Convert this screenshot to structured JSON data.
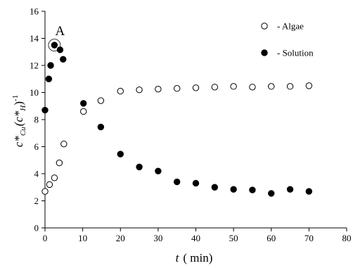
{
  "chart_data": {
    "type": "scatter",
    "xlabel": {
      "main": "t",
      "unit": "( min)"
    },
    "ylabel": {
      "c": "c*",
      "sub1": "Cu",
      "open": "(c*",
      "sub2": "H",
      "close": ")",
      "sup": "-1"
    },
    "xlim": [
      0,
      80
    ],
    "ylim": [
      0,
      16
    ],
    "xticks": [
      0,
      10,
      20,
      30,
      40,
      50,
      60,
      70,
      80
    ],
    "yticks": [
      0,
      2,
      4,
      6,
      8,
      10,
      12,
      14,
      16
    ],
    "grid": false,
    "legend_position": "top-right",
    "series": [
      {
        "name": "- Algae",
        "marker": "open-circle",
        "x": [
          0,
          1.2,
          2.5,
          3.8,
          5,
          10.2,
          14.8,
          20,
          25,
          30,
          35,
          40,
          45,
          50,
          55,
          60,
          65,
          70
        ],
        "y": [
          2.7,
          3.2,
          3.7,
          4.8,
          6.2,
          8.6,
          9.4,
          10.1,
          10.2,
          10.25,
          10.3,
          10.35,
          10.4,
          10.45,
          10.4,
          10.45,
          10.45,
          10.5
        ]
      },
      {
        "name": "- Solution",
        "marker": "filled-circle",
        "x": [
          0,
          1,
          1.5,
          2.5,
          4,
          4.8,
          10.2,
          14.8,
          20,
          25,
          30,
          35,
          40,
          45,
          50,
          55,
          60,
          65,
          70
        ],
        "y": [
          8.7,
          11,
          12,
          13.5,
          13.15,
          12.45,
          9.2,
          7.45,
          5.45,
          4.5,
          4.2,
          3.4,
          3.3,
          3.0,
          2.85,
          2.8,
          2.55,
          2.85,
          2.7
        ]
      }
    ],
    "annotations": [
      {
        "text": "A",
        "x": 2.5,
        "y": 13.5,
        "circled": true
      }
    ]
  }
}
